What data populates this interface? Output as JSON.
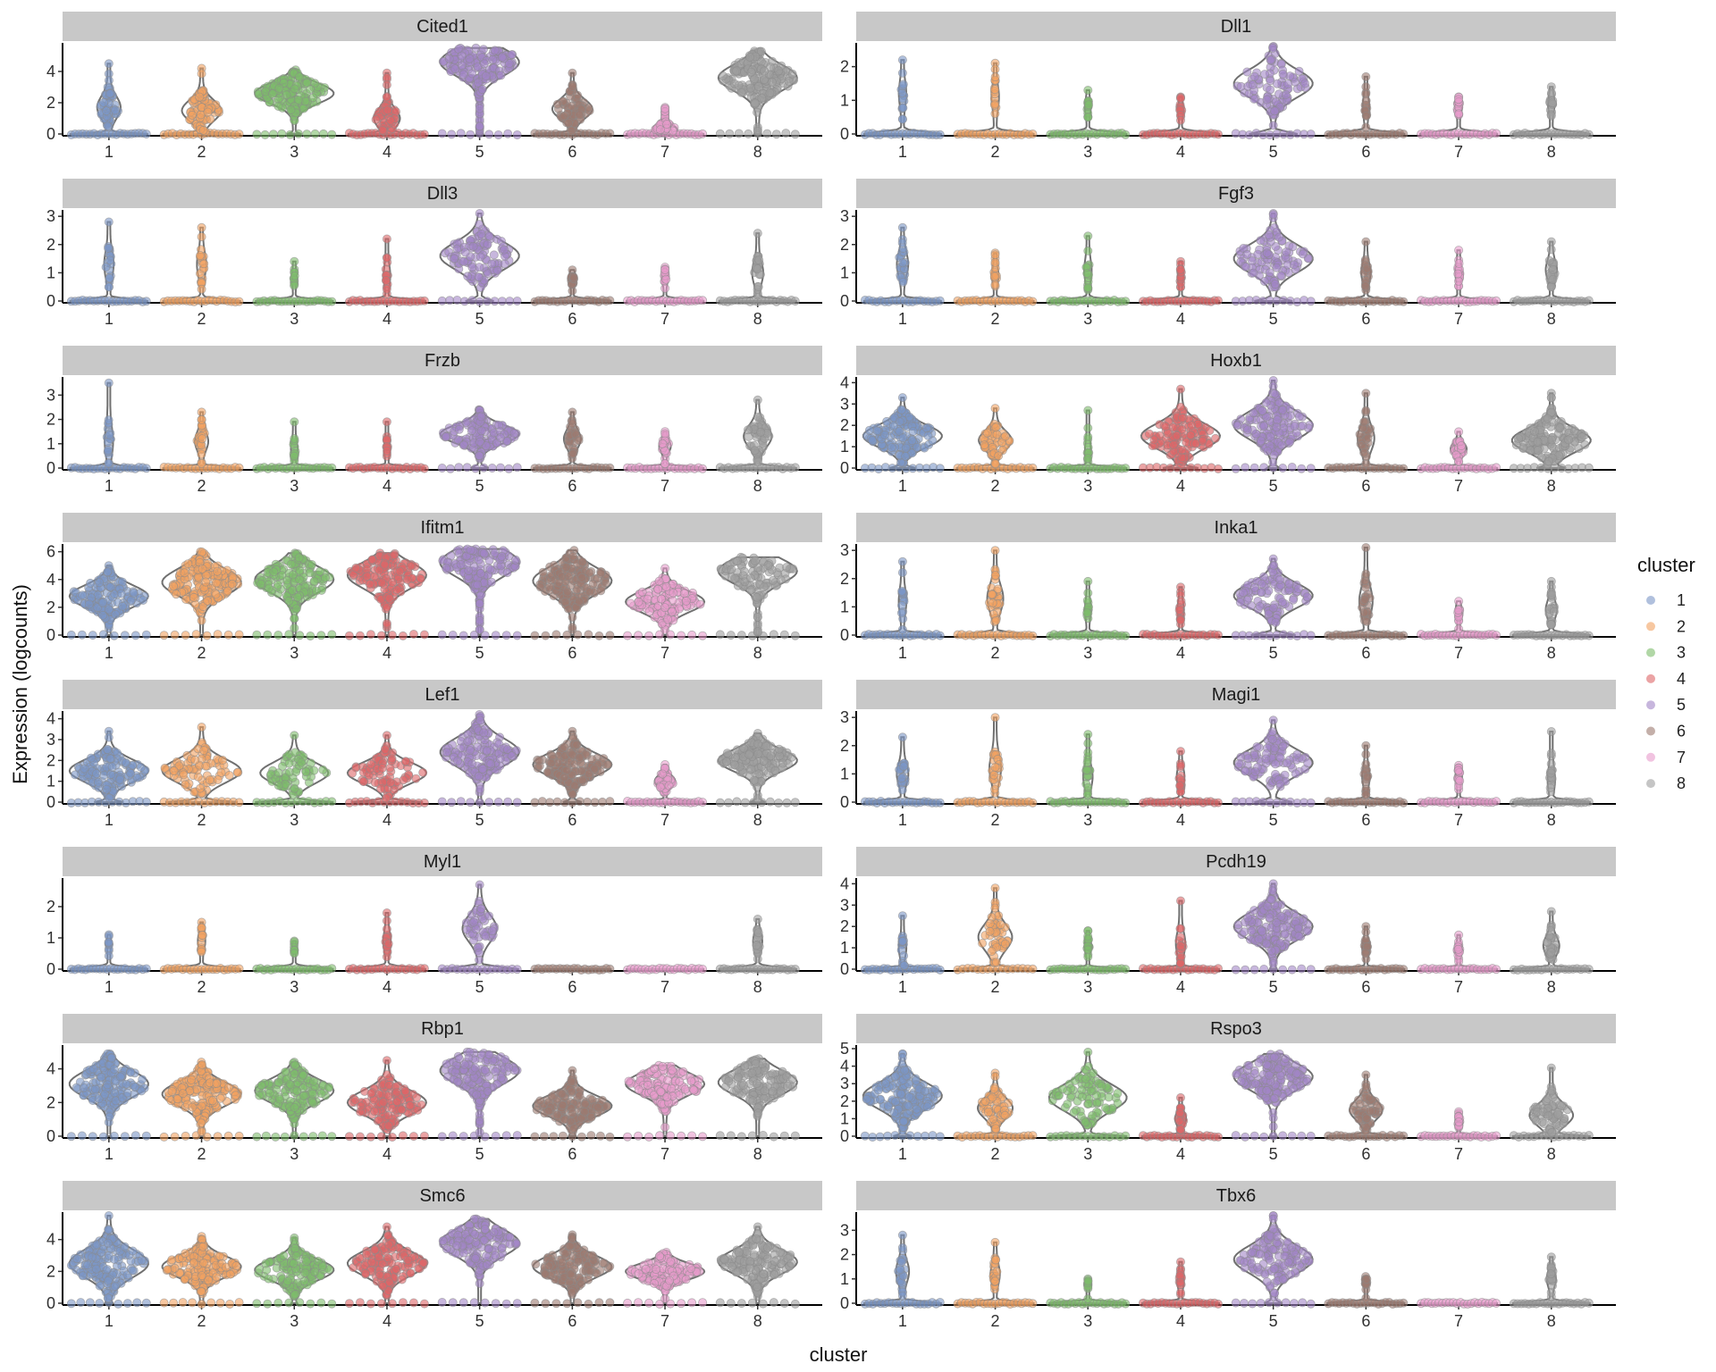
{
  "chart_data": {
    "type": "violin",
    "title": "",
    "xlabel": "cluster",
    "ylabel": "Expression (logcounts)",
    "categories": [
      "1",
      "2",
      "3",
      "4",
      "5",
      "6",
      "7",
      "8"
    ],
    "legend": {
      "title": "cluster",
      "position": "right",
      "items": [
        {
          "label": "1",
          "color": "#7b96c6"
        },
        {
          "label": "2",
          "color": "#f2a261"
        },
        {
          "label": "3",
          "color": "#7dbd6b"
        },
        {
          "label": "4",
          "color": "#dd6667"
        },
        {
          "label": "5",
          "color": "#a285c6"
        },
        {
          "label": "6",
          "color": "#9c7a6f"
        },
        {
          "label": "7",
          "color": "#e79bcb"
        },
        {
          "label": "8",
          "color": "#9e9e9e"
        }
      ]
    },
    "point_alpha": 0.6,
    "panels": [
      {
        "gene": "Cited1",
        "yticks": [
          0,
          2,
          4
        ],
        "ylim": [
          0,
          5.6
        ],
        "max": [
          4.5,
          4.2,
          4.1,
          3.9,
          5.5,
          3.9,
          1.7,
          5.3
        ],
        "center": [
          1.7,
          1.5,
          2.6,
          1.0,
          4.6,
          1.6,
          0.3,
          3.6
        ],
        "spread": [
          0.25,
          0.4,
          0.95,
          0.3,
          1.0,
          0.4,
          0.3,
          1.0
        ],
        "zero": [
          0.9,
          0.8,
          0.15,
          0.9,
          0.05,
          0.8,
          0.9,
          0.05
        ]
      },
      {
        "gene": "Dll1",
        "yticks": [
          0,
          1,
          2
        ],
        "ylim": [
          0,
          2.6
        ],
        "max": [
          2.2,
          2.1,
          1.3,
          1.1,
          2.6,
          1.7,
          1.1,
          1.4
        ],
        "center": [
          1.2,
          1.1,
          0.8,
          0.7,
          1.5,
          0.8,
          0.8,
          0.9
        ],
        "spread": [
          0.06,
          0.06,
          0.04,
          0.04,
          0.5,
          0.05,
          0.05,
          0.05
        ],
        "zero": [
          0.95,
          0.95,
          0.98,
          0.98,
          0.3,
          0.95,
          0.95,
          0.95
        ]
      },
      {
        "gene": "Dll3",
        "yticks": [
          0,
          1,
          2,
          3
        ],
        "ylim": [
          0,
          3.1
        ],
        "max": [
          2.8,
          2.6,
          1.4,
          2.2,
          3.1,
          1.1,
          1.2,
          2.4
        ],
        "center": [
          1.3,
          1.3,
          0.8,
          0.9,
          1.6,
          0.8,
          0.8,
          1.0
        ],
        "spread": [
          0.08,
          0.08,
          0.03,
          0.05,
          0.6,
          0.06,
          0.04,
          0.1
        ],
        "zero": [
          0.9,
          0.92,
          0.99,
          0.97,
          0.2,
          0.95,
          0.98,
          0.9
        ]
      },
      {
        "gene": "Fgf3",
        "yticks": [
          0,
          1,
          2,
          3
        ],
        "ylim": [
          0,
          3.1
        ],
        "max": [
          2.6,
          1.7,
          2.3,
          1.4,
          3.1,
          2.1,
          1.8,
          2.1
        ],
        "center": [
          1.3,
          0.9,
          1.1,
          0.9,
          1.5,
          1.0,
          1.0,
          1.1
        ],
        "spread": [
          0.1,
          0.05,
          0.06,
          0.04,
          0.55,
          0.08,
          0.05,
          0.1
        ],
        "zero": [
          0.88,
          0.96,
          0.95,
          0.98,
          0.25,
          0.92,
          0.96,
          0.9
        ]
      },
      {
        "gene": "Frzb",
        "yticks": [
          0,
          1,
          2,
          3
        ],
        "ylim": [
          0,
          3.6
        ],
        "max": [
          3.5,
          2.3,
          1.9,
          1.9,
          2.4,
          2.3,
          1.5,
          2.8
        ],
        "center": [
          1.1,
          1.1,
          0.8,
          0.8,
          1.4,
          1.2,
          0.9,
          1.3
        ],
        "spread": [
          0.07,
          0.12,
          0.05,
          0.04,
          0.75,
          0.15,
          0.1,
          0.25
        ],
        "zero": [
          0.92,
          0.85,
          0.95,
          0.97,
          0.15,
          0.8,
          0.85,
          0.75
        ]
      },
      {
        "gene": "Hoxb1",
        "yticks": [
          0,
          1,
          2,
          3,
          4
        ],
        "ylim": [
          0,
          4.1
        ],
        "max": [
          3.3,
          2.8,
          2.7,
          3.7,
          4.1,
          3.5,
          1.7,
          3.5
        ],
        "center": [
          1.5,
          1.3,
          0.8,
          1.5,
          2.0,
          1.4,
          0.9,
          1.3
        ],
        "spread": [
          0.85,
          0.3,
          0.04,
          0.75,
          0.8,
          0.15,
          0.15,
          0.85
        ],
        "zero": [
          0.25,
          0.75,
          0.97,
          0.3,
          0.1,
          0.8,
          0.85,
          0.25
        ]
      },
      {
        "gene": "Ifitm1",
        "yticks": [
          0,
          2,
          4,
          6
        ],
        "ylim": [
          0,
          6.3
        ],
        "max": [
          5.0,
          6.0,
          5.9,
          5.9,
          6.2,
          6.1,
          4.8,
          5.6
        ],
        "center": [
          2.8,
          3.8,
          4.0,
          4.3,
          5.2,
          3.9,
          2.4,
          4.6
        ],
        "spread": [
          0.8,
          1.0,
          0.85,
          0.9,
          0.9,
          1.0,
          0.7,
          0.55
        ],
        "zero": [
          0.03,
          0.01,
          0.0,
          0.01,
          0.0,
          0.0,
          0.02,
          0.0
        ]
      },
      {
        "gene": "Inka1",
        "yticks": [
          0,
          1,
          2,
          3
        ],
        "ylim": [
          0,
          3.1
        ],
        "max": [
          2.6,
          3.0,
          1.9,
          1.7,
          2.7,
          3.1,
          1.2,
          1.9
        ],
        "center": [
          1.2,
          1.3,
          0.9,
          0.9,
          1.4,
          1.2,
          0.9,
          0.9
        ],
        "spread": [
          0.06,
          0.15,
          0.04,
          0.05,
          0.55,
          0.12,
          0.04,
          0.1
        ],
        "zero": [
          0.93,
          0.85,
          0.97,
          0.96,
          0.3,
          0.85,
          0.98,
          0.9
        ]
      },
      {
        "gene": "Lef1",
        "yticks": [
          0,
          1,
          2,
          3,
          4
        ],
        "ylim": [
          0,
          4.2
        ],
        "max": [
          3.4,
          3.6,
          3.2,
          3.2,
          4.2,
          3.4,
          1.8,
          3.3
        ],
        "center": [
          1.5,
          1.5,
          1.4,
          1.4,
          2.4,
          1.8,
          1.0,
          2.0
        ],
        "spread": [
          0.75,
          0.45,
          0.35,
          0.45,
          0.9,
          0.95,
          0.2,
          0.9
        ],
        "zero": [
          0.25,
          0.4,
          0.4,
          0.4,
          0.05,
          0.2,
          0.85,
          0.15
        ]
      },
      {
        "gene": "Magi1",
        "yticks": [
          0,
          1,
          2,
          3
        ],
        "ylim": [
          0,
          3.1
        ],
        "max": [
          2.3,
          3.0,
          2.4,
          1.8,
          2.9,
          2.0,
          1.3,
          2.5
        ],
        "center": [
          1.0,
          1.2,
          0.9,
          0.9,
          1.4,
          0.9,
          0.9,
          0.8
        ],
        "spread": [
          0.1,
          0.1,
          0.08,
          0.06,
          0.55,
          0.06,
          0.05,
          0.06
        ],
        "zero": [
          0.85,
          0.85,
          0.9,
          0.9,
          0.25,
          0.93,
          0.96,
          0.94
        ]
      },
      {
        "gene": "Myl1",
        "yticks": [
          0,
          1,
          2
        ],
        "ylim": [
          0,
          2.8
        ],
        "max": [
          1.1,
          1.5,
          0.9,
          1.8,
          2.7,
          0.0,
          0.0,
          1.6
        ],
        "center": [
          0.8,
          0.9,
          0.7,
          0.9,
          1.3,
          0.0,
          0.0,
          0.9
        ],
        "spread": [
          0.02,
          0.06,
          0.02,
          0.06,
          0.25,
          0.0,
          0.0,
          0.08
        ],
        "zero": [
          0.99,
          0.95,
          0.99,
          0.96,
          0.6,
          1.0,
          1.0,
          0.94
        ]
      },
      {
        "gene": "Pcdh19",
        "yticks": [
          0,
          1,
          2,
          3,
          4
        ],
        "ylim": [
          0,
          4.1
        ],
        "max": [
          2.5,
          3.8,
          1.8,
          3.2,
          4.0,
          2.0,
          1.6,
          2.7
        ],
        "center": [
          1.0,
          1.5,
          1.1,
          1.2,
          2.0,
          1.0,
          0.9,
          1.1
        ],
        "spread": [
          0.06,
          0.25,
          0.05,
          0.08,
          0.95,
          0.06,
          0.05,
          0.15
        ],
        "zero": [
          0.93,
          0.6,
          0.95,
          0.9,
          0.05,
          0.93,
          0.96,
          0.85
        ]
      },
      {
        "gene": "Rbp1",
        "yticks": [
          0,
          2,
          4
        ],
        "ylim": [
          0,
          5.2
        ],
        "max": [
          4.9,
          4.4,
          4.4,
          4.5,
          5.0,
          3.9,
          4.2,
          4.6
        ],
        "center": [
          3.1,
          2.5,
          2.7,
          2.0,
          3.9,
          1.8,
          3.1,
          3.2
        ],
        "spread": [
          0.9,
          1.0,
          0.85,
          0.8,
          0.9,
          0.9,
          0.8,
          0.8
        ],
        "zero": [
          0.02,
          0.03,
          0.04,
          0.03,
          0.02,
          0.04,
          0.0,
          0.0
        ]
      },
      {
        "gene": "Rspo3",
        "yticks": [
          0,
          1,
          2,
          3,
          4,
          5
        ],
        "ylim": [
          0,
          5.0
        ],
        "max": [
          4.7,
          3.6,
          4.8,
          2.2,
          4.7,
          3.5,
          1.4,
          3.9
        ],
        "center": [
          2.3,
          1.6,
          2.2,
          1.0,
          3.4,
          1.5,
          0.9,
          1.2
        ],
        "spread": [
          1.0,
          0.3,
          0.5,
          0.1,
          0.9,
          0.3,
          0.05,
          0.35
        ],
        "zero": [
          0.2,
          0.7,
          0.5,
          0.9,
          0.05,
          0.75,
          0.96,
          0.6
        ]
      },
      {
        "gene": "Smc6",
        "yticks": [
          0,
          2,
          4
        ],
        "ylim": [
          0,
          5.5
        ],
        "max": [
          5.5,
          4.2,
          4.1,
          4.8,
          5.3,
          4.3,
          3.2,
          4.8
        ],
        "center": [
          2.5,
          2.3,
          2.1,
          2.5,
          3.8,
          2.3,
          2.0,
          2.6
        ],
        "spread": [
          0.9,
          0.9,
          0.75,
          0.85,
          0.9,
          0.85,
          0.75,
          0.85
        ],
        "zero": [
          0.05,
          0.04,
          0.03,
          0.02,
          0.0,
          0.0,
          0.0,
          0.0
        ]
      },
      {
        "gene": "Tbx6",
        "yticks": [
          0,
          1,
          2,
          3
        ],
        "ylim": [
          0,
          3.6
        ],
        "max": [
          2.8,
          2.5,
          1.0,
          1.7,
          3.6,
          1.1,
          0.0,
          1.9
        ],
        "center": [
          1.3,
          1.2,
          0.9,
          0.9,
          1.8,
          0.9,
          0.0,
          1.0
        ],
        "spread": [
          0.12,
          0.08,
          0.03,
          0.05,
          0.75,
          0.04,
          0.0,
          0.08
        ],
        "zero": [
          0.88,
          0.92,
          0.97,
          0.96,
          0.15,
          0.97,
          1.0,
          0.93
        ]
      }
    ]
  }
}
